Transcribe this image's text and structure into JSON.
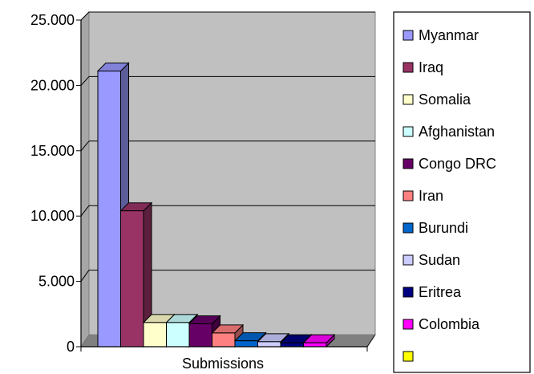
{
  "chart_data": {
    "type": "bar",
    "title": "",
    "xlabel": "Submissions",
    "ylabel": "",
    "ylim": [
      0,
      25000
    ],
    "yticks": [
      "0",
      "5.000",
      "10.000",
      "15.000",
      "20.000",
      "25.000"
    ],
    "ytick_values": [
      0,
      5000,
      10000,
      15000,
      20000,
      25000
    ],
    "grid": true,
    "legend_position": "right",
    "categories": [
      "Submissions"
    ],
    "series": [
      {
        "name": "Myanmar",
        "values": [
          21100
        ],
        "color": "#9999ff"
      },
      {
        "name": "Iraq",
        "values": [
          10400
        ],
        "color": "#993366"
      },
      {
        "name": "Somalia",
        "values": [
          1850
        ],
        "color": "#ffffcc"
      },
      {
        "name": "Afghanistan",
        "values": [
          1850
        ],
        "color": "#ccffff"
      },
      {
        "name": "Congo DRC",
        "values": [
          1750
        ],
        "color": "#660066"
      },
      {
        "name": "Iran",
        "values": [
          1050
        ],
        "color": "#ff8080"
      },
      {
        "name": "Burundi",
        "values": [
          450
        ],
        "color": "#0066cc"
      },
      {
        "name": "Sudan",
        "values": [
          380
        ],
        "color": "#ccccff"
      },
      {
        "name": "Eritrea",
        "values": [
          300
        ],
        "color": "#000080"
      },
      {
        "name": "Colombia",
        "values": [
          300
        ],
        "color": "#ff00ff"
      },
      {
        "name": "",
        "values": [
          0
        ],
        "color": "#ffff00"
      }
    ]
  }
}
